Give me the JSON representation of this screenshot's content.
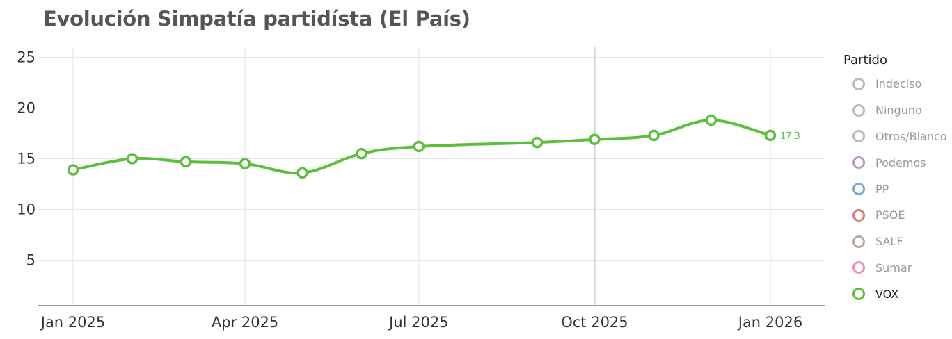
{
  "chart_data": {
    "type": "line",
    "title": "Evolución Simpatía partidísta (El País)",
    "xlabel": "",
    "ylabel": "",
    "ylim": [
      0.5,
      26
    ],
    "yticks": [
      5,
      10,
      15,
      20,
      25
    ],
    "xticks": [
      {
        "date": "2025-01-01",
        "label": "Jan 2025"
      },
      {
        "date": "2025-04-01",
        "label": "Apr 2025"
      },
      {
        "date": "2025-07-01",
        "label": "Jul 2025"
      },
      {
        "date": "2025-10-01",
        "label": "Oct 2025"
      },
      {
        "date": "2026-01-01",
        "label": "Jan 2026"
      }
    ],
    "grid": true,
    "legend_title": "Partido",
    "legend_position": "right",
    "legend": [
      {
        "name": "Indeciso",
        "color": "#bbbbbb",
        "active": false
      },
      {
        "name": "Ninguno",
        "color": "#bbbbbb",
        "active": false
      },
      {
        "name": "Otros/Blanco",
        "color": "#bbbbbb",
        "active": false
      },
      {
        "name": "Podemos",
        "color": "#b79ac2",
        "active": false
      },
      {
        "name": "PP",
        "color": "#7ba7d4",
        "active": false
      },
      {
        "name": "PSOE",
        "color": "#de7a7a",
        "active": false
      },
      {
        "name": "SALF",
        "color": "#b8aa9c",
        "active": false
      },
      {
        "name": "Sumar",
        "color": "#f08fb0",
        "active": false
      },
      {
        "name": "VOX",
        "color": "#5cbf3c",
        "active": true
      }
    ],
    "series": [
      {
        "name": "VOX",
        "color": "#5cbf3c",
        "end_label": "17.3",
        "points": [
          {
            "x": "2025-01-01",
            "y": 13.9
          },
          {
            "x": "2025-02-01",
            "y": 15.0
          },
          {
            "x": "2025-03-01",
            "y": 14.7
          },
          {
            "x": "2025-04-01",
            "y": 14.5
          },
          {
            "x": "2025-05-01",
            "y": 13.6
          },
          {
            "x": "2025-06-01",
            "y": 15.5
          },
          {
            "x": "2025-07-01",
            "y": 16.2
          },
          {
            "x": "2025-09-01",
            "y": 16.6
          },
          {
            "x": "2025-10-01",
            "y": 16.9
          },
          {
            "x": "2025-11-01",
            "y": 17.3
          },
          {
            "x": "2025-12-01",
            "y": 18.8
          },
          {
            "x": "2026-01-01",
            "y": 17.3
          }
        ]
      }
    ]
  }
}
